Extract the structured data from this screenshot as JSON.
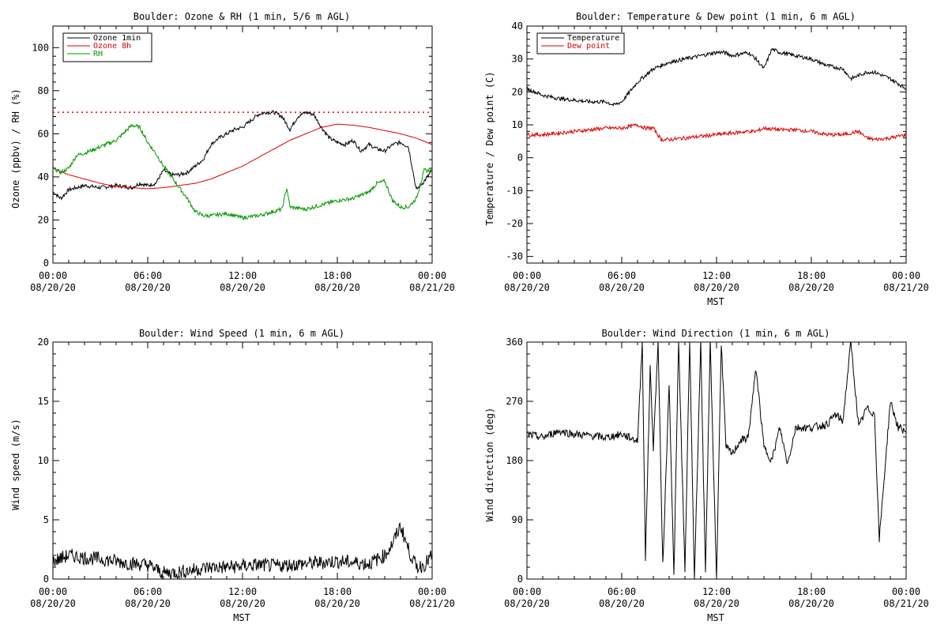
{
  "charts": [
    {
      "id": "ozone",
      "title": "Boulder: Ozone & RH (1 min, 5/6 m AGL)",
      "ylabel": "Ozone (ppbv) / RH (%)",
      "xlabel": "",
      "ylim": [
        0,
        110
      ],
      "yticks": [
        0,
        20,
        40,
        60,
        80,
        100
      ],
      "xticks": [
        {
          "time": "00:00",
          "date": "08/20/20"
        },
        {
          "time": "06:00",
          "date": "08/20/20"
        },
        {
          "time": "12:00",
          "date": "08/20/20"
        },
        {
          "time": "18:00",
          "date": "08/20/20"
        },
        {
          "time": "00:00",
          "date": "08/21/20"
        }
      ],
      "legend": [
        {
          "label": "Ozone 1min",
          "color": "#000000"
        },
        {
          "label": "Ozone 8h",
          "color": "#dd0000"
        },
        {
          "label": "RH",
          "color": "#009900"
        }
      ]
    },
    {
      "id": "temp",
      "title": "Boulder: Temperature & Dew point (1 min, 6 m AGL)",
      "ylabel": "Temperature / Dew point (C)",
      "xlabel": "MST",
      "ylim": [
        -32,
        40
      ],
      "yticks": [
        -30,
        -20,
        -10,
        0,
        10,
        20,
        30,
        40
      ],
      "xticks": [
        {
          "time": "00:00",
          "date": "08/20/20"
        },
        {
          "time": "06:00",
          "date": "08/20/20"
        },
        {
          "time": "12:00",
          "date": "08/20/20"
        },
        {
          "time": "18:00",
          "date": "08/20/20"
        },
        {
          "time": "00:00",
          "date": "08/21/20"
        }
      ],
      "legend": [
        {
          "label": "Temperature",
          "color": "#000000"
        },
        {
          "label": "Dew point",
          "color": "#dd0000"
        }
      ]
    },
    {
      "id": "wind",
      "title": "Boulder: Wind Speed (1 min, 6 m AGL)",
      "ylabel": "Wind speed (m/s)",
      "xlabel": "MST",
      "ylim": [
        0,
        20
      ],
      "yticks": [
        0,
        5,
        10,
        15,
        20
      ],
      "xticks": [
        {
          "time": "00:00",
          "date": "08/20/20"
        },
        {
          "time": "06:00",
          "date": "08/20/20"
        },
        {
          "time": "12:00",
          "date": "08/20/20"
        },
        {
          "time": "18:00",
          "date": "08/20/20"
        },
        {
          "time": "00:00",
          "date": "08/21/20"
        }
      ],
      "legend": []
    },
    {
      "id": "dir",
      "title": "Boulder: Wind Direction (1 min, 6 m AGL)",
      "ylabel": "Wind direction (deg)",
      "xlabel": "MST",
      "ylim": [
        0,
        360
      ],
      "yticks": [
        0,
        90,
        180,
        270,
        360
      ],
      "xticks": [
        {
          "time": "00:00",
          "date": "08/20/20"
        },
        {
          "time": "06:00",
          "date": "08/20/20"
        },
        {
          "time": "12:00",
          "date": "08/20/20"
        },
        {
          "time": "18:00",
          "date": "08/20/20"
        },
        {
          "time": "00:00",
          "date": "08/21/20"
        }
      ],
      "legend": []
    }
  ],
  "chart_data": [
    {
      "type": "line",
      "title": "Boulder: Ozone & RH (1 min, 5/6 m AGL)",
      "ylabel": "Ozone (ppbv) / RH (%)",
      "xlabel": "",
      "xlim_hours": [
        0,
        24
      ],
      "ylim": [
        0,
        110
      ],
      "grid": false,
      "legend_position": "top-left",
      "reference_lines": [
        {
          "y": 70,
          "style": "dotted",
          "color": "#dd0000"
        }
      ],
      "series": [
        {
          "name": "Ozone 1min",
          "color": "#000000",
          "x_hours": [
            0,
            0.5,
            1,
            1.5,
            2,
            3,
            4,
            5,
            5.5,
            6,
            6.5,
            7,
            7.5,
            8,
            8.5,
            9,
            9.5,
            10,
            10.5,
            11,
            11.5,
            12,
            12.5,
            13,
            13.5,
            14,
            14.5,
            15,
            15.5,
            16,
            16.5,
            17,
            17.5,
            18,
            18.5,
            19,
            19.5,
            20,
            20.5,
            21,
            21.5,
            22,
            22.5,
            23,
            23.5,
            24
          ],
          "values": [
            33,
            30,
            34,
            35,
            36,
            35,
            36,
            35,
            37,
            36,
            37,
            43,
            41,
            41,
            42,
            45,
            48,
            55,
            58,
            60,
            62,
            63,
            66,
            69,
            70,
            70,
            68,
            62,
            68,
            70,
            69,
            63,
            58,
            56,
            55,
            57,
            52,
            55,
            53,
            52,
            55,
            56,
            54,
            34,
            38,
            43
          ]
        },
        {
          "name": "Ozone 8h",
          "color": "#dd0000",
          "x_hours": [
            0,
            1,
            2,
            3,
            4,
            5,
            6,
            7,
            8,
            9,
            10,
            11,
            12,
            13,
            14,
            15,
            16,
            17,
            18,
            19,
            20,
            21,
            22,
            23,
            24
          ],
          "values": [
            44,
            41,
            39,
            37,
            35.5,
            35,
            34.5,
            35,
            36,
            37,
            39,
            42,
            45,
            49,
            53,
            57,
            60,
            63,
            64.5,
            64,
            63,
            61.5,
            60,
            58,
            55
          ]
        },
        {
          "name": "RH",
          "color": "#009900",
          "x_hours": [
            0,
            0.5,
            1,
            1.5,
            2,
            3,
            4,
            5,
            5.5,
            6,
            6.5,
            7,
            7.5,
            8,
            8.5,
            9,
            9.5,
            10,
            11,
            12,
            13,
            14,
            14.5,
            14.8,
            15,
            16,
            17,
            18,
            19,
            20,
            20.5,
            21,
            21.5,
            22,
            22.5,
            23,
            23.5,
            24
          ],
          "values": [
            44,
            42,
            44,
            50,
            51,
            54,
            57,
            64,
            63,
            56,
            51,
            45,
            40,
            35,
            30,
            24,
            22,
            22,
            23,
            21,
            22,
            24,
            25,
            35,
            26,
            25,
            27,
            29,
            30,
            33,
            37,
            38,
            29,
            26,
            26,
            30,
            43,
            43
          ]
        }
      ]
    },
    {
      "type": "line",
      "title": "Boulder: Temperature & Dew point (1 min, 6 m AGL)",
      "ylabel": "Temperature / Dew point (C)",
      "xlabel": "MST",
      "xlim_hours": [
        0,
        24
      ],
      "ylim": [
        -32,
        40
      ],
      "grid": false,
      "legend_position": "top-left",
      "series": [
        {
          "name": "Temperature",
          "color": "#000000",
          "x_hours": [
            0,
            1,
            2,
            3,
            4,
            5,
            5.5,
            6,
            6.5,
            7,
            8,
            9,
            10,
            11,
            12,
            12.5,
            13,
            14,
            14.5,
            15,
            15.5,
            16,
            17,
            18,
            19,
            20,
            20.5,
            21,
            21.5,
            22,
            23,
            24
          ],
          "values": [
            21,
            19,
            18,
            17.5,
            17,
            17,
            16,
            17,
            20,
            23,
            27,
            29,
            30,
            31,
            32,
            32,
            31,
            32,
            30,
            27,
            33,
            32,
            31,
            30,
            28,
            27,
            24,
            25,
            26,
            26,
            24,
            21
          ]
        },
        {
          "name": "Dew point",
          "color": "#dd0000",
          "x_hours": [
            0,
            1,
            2,
            3,
            4,
            5,
            6,
            7,
            7.5,
            8,
            8.5,
            9,
            10,
            11,
            12,
            13,
            14,
            14.5,
            15,
            16,
            17,
            18,
            19,
            20,
            21,
            21.5,
            22,
            23,
            24
          ],
          "values": [
            7,
            7,
            7.5,
            8,
            8.5,
            9,
            9,
            10,
            9,
            9,
            5.5,
            5.5,
            6,
            6.5,
            7,
            7.5,
            8,
            8,
            9,
            8.5,
            8.5,
            8,
            7,
            7,
            8,
            6,
            5.5,
            6,
            7
          ]
        }
      ]
    },
    {
      "type": "line",
      "title": "Boulder: Wind Speed (1 min, 6 m AGL)",
      "ylabel": "Wind speed (m/s)",
      "xlabel": "MST",
      "xlim_hours": [
        0,
        24
      ],
      "ylim": [
        0,
        20
      ],
      "grid": false,
      "series": [
        {
          "name": "",
          "color": "#000000",
          "x_hours": [
            0,
            1,
            2,
            3,
            4,
            5,
            6,
            7,
            8,
            9,
            10,
            11,
            12,
            13,
            14,
            15,
            16,
            17,
            18,
            19,
            20,
            21,
            21.5,
            22,
            22.5,
            23,
            23.5,
            24
          ],
          "values": [
            1.5,
            2,
            1.8,
            1.7,
            1.5,
            1.3,
            1.2,
            0.5,
            0.6,
            0.8,
            1,
            1,
            1.1,
            1.2,
            1.1,
            1.2,
            1.3,
            1.4,
            1.5,
            1.4,
            1.3,
            2,
            3,
            4.5,
            2.5,
            1,
            1.2,
            2
          ]
        }
      ]
    },
    {
      "type": "line",
      "title": "Boulder: Wind Direction (1 min, 6 m AGL)",
      "ylabel": "Wind direction (deg)",
      "xlabel": "MST",
      "xlim_hours": [
        0,
        24
      ],
      "ylim": [
        0,
        360
      ],
      "grid": false,
      "series": [
        {
          "name": "",
          "color": "#000000",
          "x_hours": [
            0,
            1,
            2,
            3,
            4,
            5,
            6,
            7,
            7.3,
            7.5,
            7.8,
            8,
            8.3,
            8.6,
            9,
            9.3,
            9.6,
            10,
            10.3,
            10.6,
            11,
            11.3,
            11.6,
            12,
            12.3,
            12.6,
            13,
            13.5,
            14,
            14.5,
            15,
            15.5,
            16,
            16.5,
            17,
            18,
            19,
            19.5,
            20,
            20.5,
            21,
            21.5,
            22,
            22.3,
            22.6,
            23,
            23.5,
            24
          ],
          "values": [
            220,
            215,
            225,
            220,
            218,
            215,
            220,
            210,
            360,
            30,
            320,
            200,
            360,
            20,
            300,
            5,
            360,
            10,
            360,
            0,
            360,
            5,
            360,
            0,
            360,
            200,
            190,
            210,
            215,
            320,
            200,
            180,
            230,
            175,
            230,
            230,
            235,
            250,
            240,
            360,
            230,
            260,
            250,
            60,
            150,
            270,
            230,
            225
          ]
        }
      ]
    }
  ]
}
